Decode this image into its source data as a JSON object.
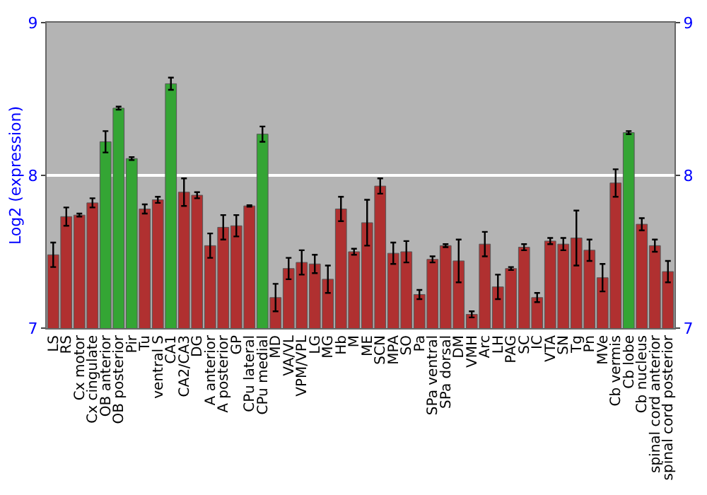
{
  "chart_data": {
    "type": "bar",
    "ylabel": "Log2 (expression)",
    "categories": [
      "LS",
      "RS",
      "Cx motor",
      "Cx cingulate",
      "OB anterior",
      "OB posterior",
      "Pir",
      "Tu",
      "ventral S",
      "CA1",
      "CA2/CA3",
      "DG",
      "A anterior",
      "A posterior",
      "GP",
      "CPu lateral",
      "CPu medial",
      "MD",
      "VA/VL",
      "VPM/VPL",
      "LG",
      "MG",
      "Hb",
      "M",
      "ME",
      "SCN",
      "MPA",
      "SO",
      "Pa",
      "SPa ventral",
      "SPa dorsal",
      "DM",
      "VMH",
      "Arc",
      "LH",
      "PAG",
      "SC",
      "IC",
      "VTA",
      "SN",
      "Tg",
      "Pn",
      "MVe",
      "Cb vermis",
      "Cb lobe",
      "Cb nucleus",
      "spinal cord anterior",
      "spinal cord posterior"
    ],
    "values": [
      7.48,
      7.73,
      7.74,
      7.82,
      8.22,
      8.44,
      8.11,
      7.78,
      7.84,
      8.6,
      7.89,
      7.87,
      7.54,
      7.66,
      7.67,
      7.8,
      8.27,
      7.2,
      7.39,
      7.43,
      7.42,
      7.32,
      7.78,
      7.5,
      7.69,
      7.93,
      7.49,
      7.5,
      7.22,
      7.45,
      7.54,
      7.44,
      7.09,
      7.55,
      7.27,
      7.39,
      7.53,
      7.2,
      7.57,
      7.55,
      7.59,
      7.51,
      7.33,
      7.95,
      8.28,
      7.68,
      7.54,
      7.37
    ],
    "errors": [
      0.08,
      0.06,
      0.01,
      0.03,
      0.07,
      0.01,
      0.01,
      0.03,
      0.02,
      0.04,
      0.09,
      0.02,
      0.08,
      0.08,
      0.07,
      0.005,
      0.05,
      0.09,
      0.07,
      0.08,
      0.06,
      0.09,
      0.08,
      0.02,
      0.15,
      0.05,
      0.07,
      0.07,
      0.03,
      0.02,
      0.01,
      0.14,
      0.02,
      0.08,
      0.08,
      0.01,
      0.02,
      0.03,
      0.02,
      0.04,
      0.18,
      0.07,
      0.09,
      0.09,
      0.01,
      0.04,
      0.04,
      0.07
    ],
    "colors": [
      "#b03030",
      "#b03030",
      "#b03030",
      "#b03030",
      "#34a534",
      "#34a534",
      "#34a534",
      "#b03030",
      "#b03030",
      "#34a534",
      "#b03030",
      "#b03030",
      "#b03030",
      "#b03030",
      "#b03030",
      "#b03030",
      "#34a534",
      "#b03030",
      "#b03030",
      "#b03030",
      "#b03030",
      "#b03030",
      "#b03030",
      "#b03030",
      "#b03030",
      "#b03030",
      "#b03030",
      "#b03030",
      "#b03030",
      "#b03030",
      "#b03030",
      "#b03030",
      "#b03030",
      "#b03030",
      "#b03030",
      "#b03030",
      "#b03030",
      "#b03030",
      "#b03030",
      "#b03030",
      "#b03030",
      "#b03030",
      "#b03030",
      "#b03030",
      "#34a534",
      "#b03030",
      "#b03030",
      "#b03030"
    ],
    "ylim": [
      7,
      9
    ],
    "yticks": [
      7,
      8,
      9
    ],
    "y2lim": [
      7,
      9
    ],
    "y2ticks": [
      7,
      8,
      9
    ],
    "grid": "y"
  }
}
